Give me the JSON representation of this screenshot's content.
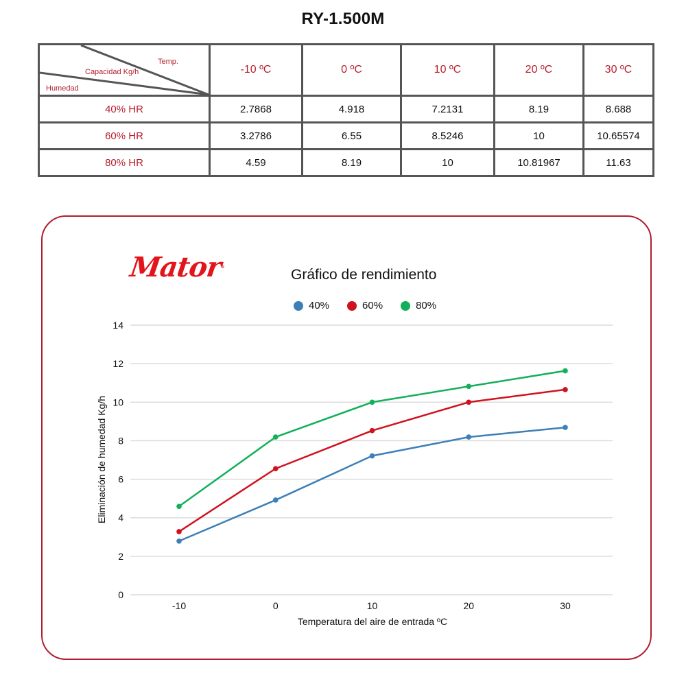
{
  "page": {
    "title": "RY-1.500M"
  },
  "table": {
    "corner": {
      "temp_label": "Temp.",
      "capacity_label": "Capacidad Kg/h",
      "humidity_label": "Humedad"
    },
    "columns": [
      "-10 ºC",
      "0 ºC",
      "10 ºC",
      "20 ºC",
      "30 ºC"
    ],
    "rows": [
      {
        "label": "40% HR",
        "values": [
          "2.7868",
          "4.918",
          "7.2131",
          "8.19",
          "8.688"
        ]
      },
      {
        "label": "60% HR",
        "values": [
          "3.2786",
          "6.55",
          "8.5246",
          "10",
          "10.65574"
        ]
      },
      {
        "label": "80% HR",
        "values": [
          "4.59",
          "8.19",
          "10",
          "10.81967",
          "11.63"
        ]
      }
    ],
    "colors": {
      "header_text": "#b5202e",
      "border": "#555555"
    }
  },
  "card": {
    "logo_text": "Mator",
    "logo_mark": "®",
    "border_color": "#b01c2e",
    "logo_color": "#e3141b"
  },
  "chart_data": {
    "type": "line",
    "title": "Gráfico de rendimiento",
    "xlabel": "Temperatura del aire de entrada ºC",
    "ylabel": "Eliminación de humedad Kg/h",
    "x": [
      -10,
      0,
      10,
      20,
      30
    ],
    "x_tick_labels": [
      "-10",
      "0",
      "10",
      "20",
      "30"
    ],
    "y_ticks": [
      0,
      2,
      4,
      6,
      8,
      10,
      12,
      14
    ],
    "ylim": [
      0,
      14
    ],
    "grid": true,
    "legend_position": "top",
    "series": [
      {
        "name": "40%",
        "color": "#3d7fb8",
        "values": [
          2.7868,
          4.918,
          7.2131,
          8.19,
          8.688
        ]
      },
      {
        "name": "60%",
        "color": "#d0121f",
        "values": [
          3.2786,
          6.55,
          8.5246,
          10,
          10.65574
        ]
      },
      {
        "name": "80%",
        "color": "#12b05a",
        "values": [
          4.59,
          8.19,
          10,
          10.81967,
          11.63
        ]
      }
    ]
  }
}
